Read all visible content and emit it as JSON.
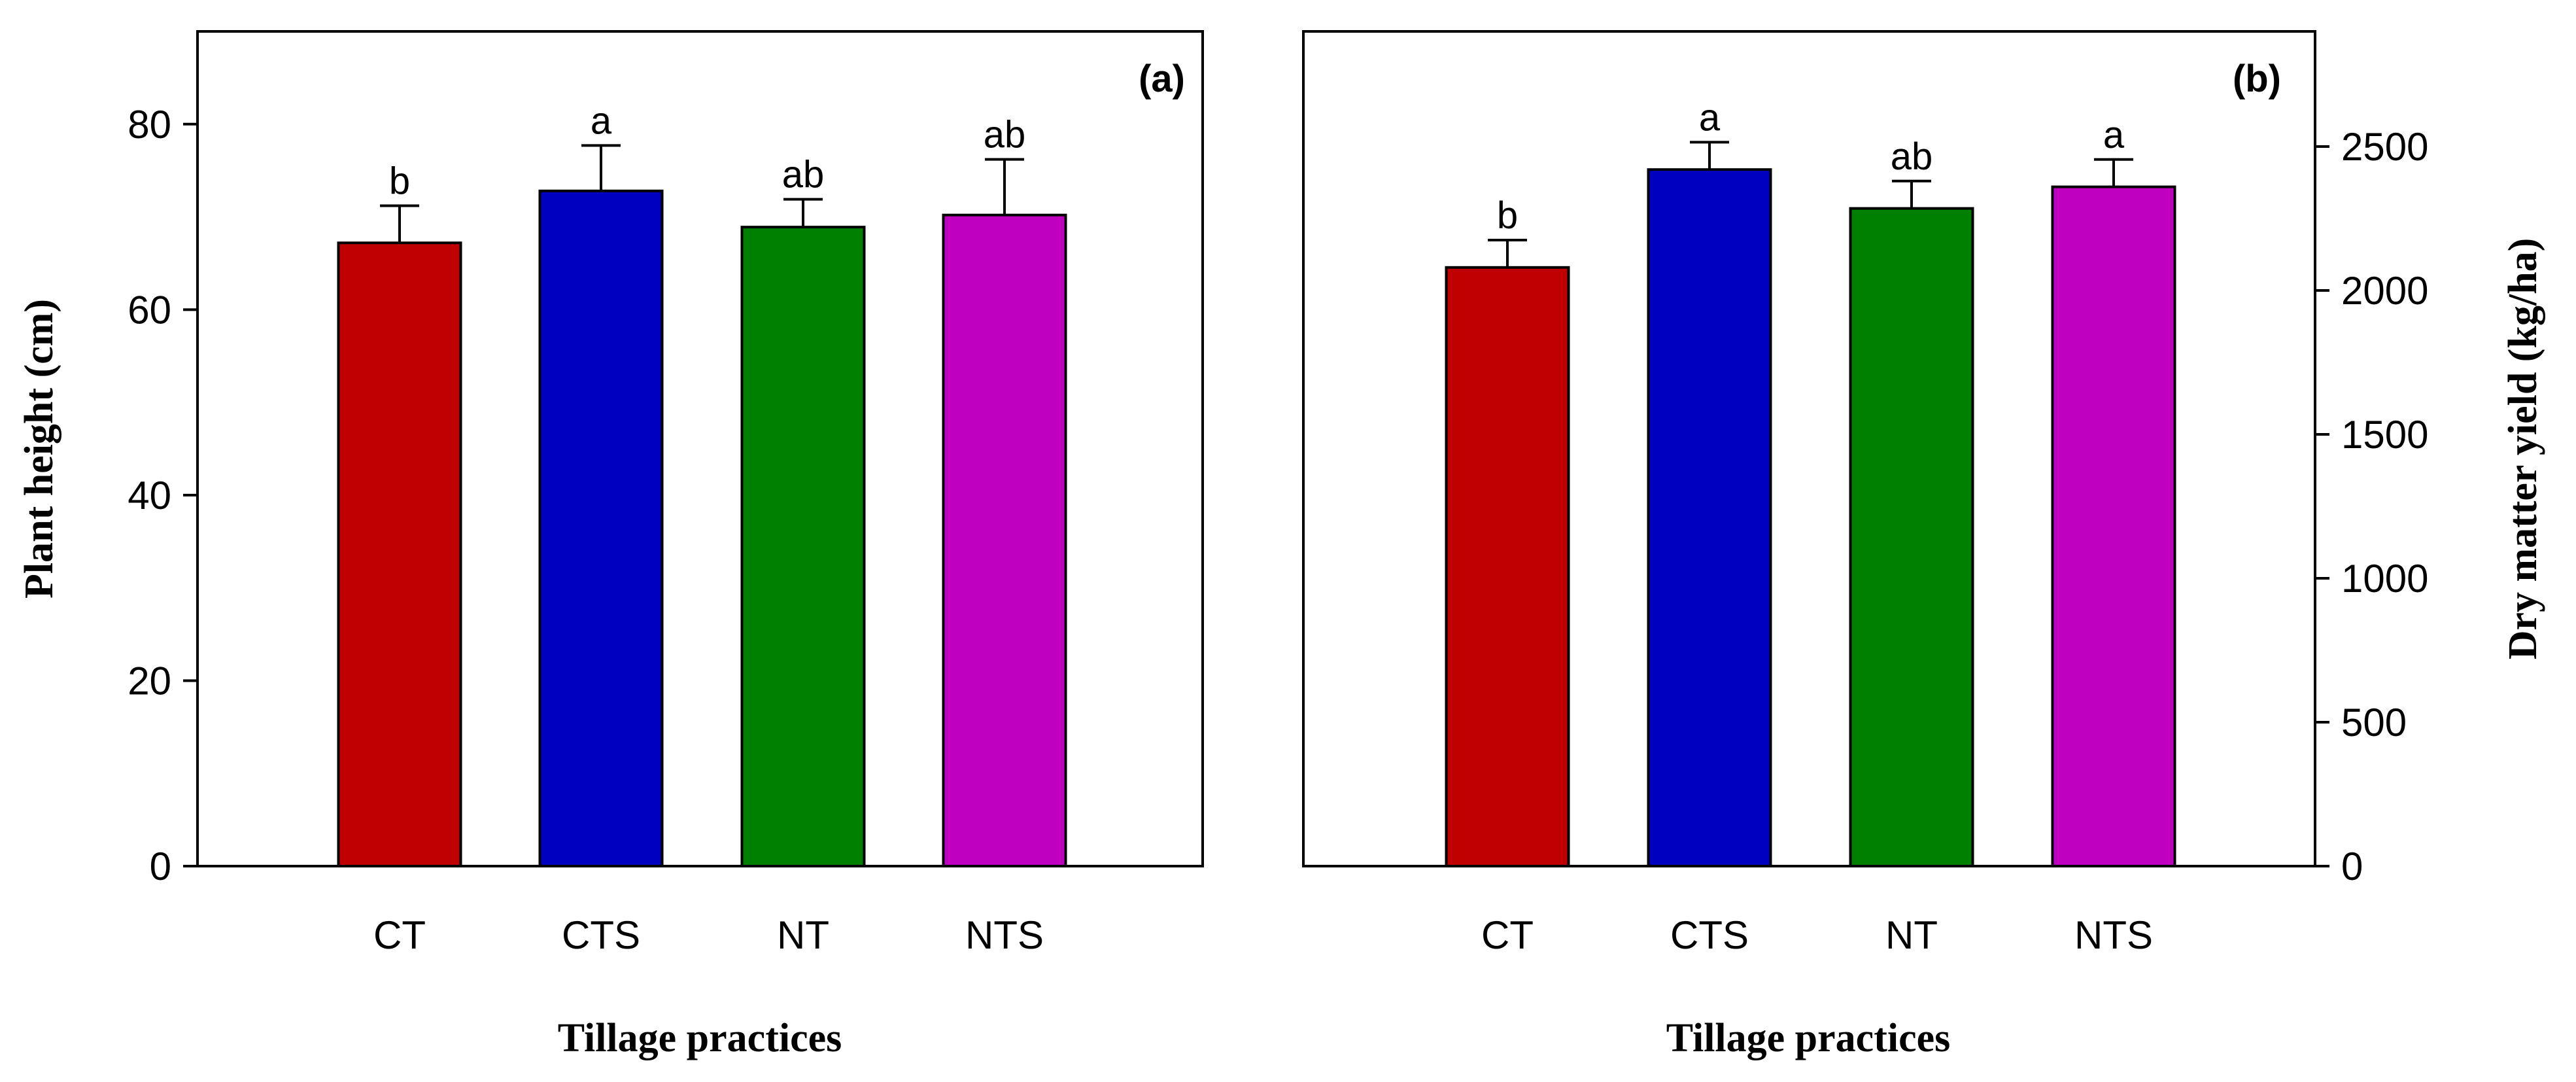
{
  "colors": {
    "CT": "#c00000",
    "CTS": "#0000c0",
    "NT": "#008000",
    "NTS": "#c000c0"
  },
  "chart_data": [
    {
      "panel_label": "(a)",
      "type": "bar",
      "xlabel": "Tillage practices",
      "ylabel": "Plant height (cm)",
      "categories": [
        "CT",
        "CTS",
        "NT",
        "NTS"
      ],
      "values": [
        67.2,
        72.8,
        68.9,
        70.2
      ],
      "errors": [
        4.0,
        4.9,
        3.0,
        6.0
      ],
      "significance": [
        "b",
        "a",
        "ab",
        "ab"
      ],
      "ylim": [
        0,
        90
      ],
      "yticks": [
        0,
        20,
        40,
        60,
        80
      ],
      "y_axis_side": "left",
      "legend": "none",
      "grid": false
    },
    {
      "panel_label": "(b)",
      "type": "bar",
      "xlabel": "Tillage practices",
      "ylabel": "Dry matter yield (kg/ha)",
      "categories": [
        "CT",
        "CTS",
        "NT",
        "NTS"
      ],
      "values": [
        2080,
        2420,
        2285,
        2360
      ],
      "errors": [
        95,
        95,
        95,
        95
      ],
      "significance": [
        "b",
        "a",
        "ab",
        "a"
      ],
      "ylim": [
        0,
        2900
      ],
      "yticks": [
        0,
        500,
        1000,
        1500,
        2000,
        2500
      ],
      "y_axis_side": "right",
      "legend": "none",
      "grid": false
    }
  ]
}
